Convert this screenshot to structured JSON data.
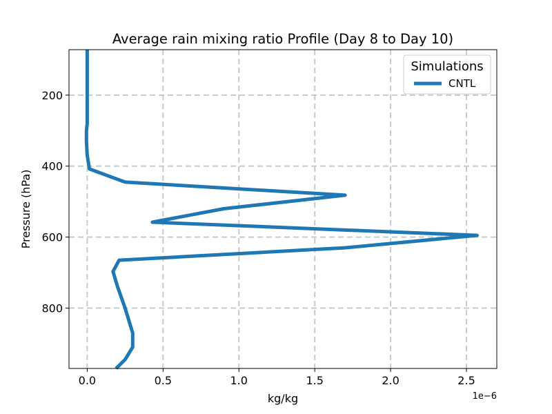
{
  "chart_data": {
    "type": "line",
    "title": "Average rain mixing ratio Profile (Day 8 to Day 10)",
    "xlabel": "kg/kg",
    "ylabel": "Pressure (hPa)",
    "x_offset_label": "1e−6",
    "xlim": [
      -0.12,
      2.7
    ],
    "ylim": [
      970,
      72
    ],
    "y_inverted": true,
    "grid": true,
    "x_ticks": [
      0.0,
      0.5,
      1.0,
      1.5,
      2.0,
      2.5
    ],
    "x_tick_labels": [
      "0.0",
      "0.5",
      "1.0",
      "1.5",
      "2.0",
      "2.5"
    ],
    "y_ticks": [
      200,
      400,
      600,
      800
    ],
    "y_tick_labels": [
      "200",
      "400",
      "600",
      "800"
    ],
    "legend": {
      "title": "Simulations",
      "position": "top-right"
    },
    "series": [
      {
        "name": "CNTL",
        "color": "#1f77b4",
        "points": [
          {
            "x": 0.0,
            "y": 72
          },
          {
            "x": 0.0,
            "y": 150
          },
          {
            "x": 0.0,
            "y": 200
          },
          {
            "x": 0.0,
            "y": 250
          },
          {
            "x": 0.0,
            "y": 280
          },
          {
            "x": -0.005,
            "y": 300
          },
          {
            "x": -0.005,
            "y": 330
          },
          {
            "x": 0.0,
            "y": 370
          },
          {
            "x": 0.015,
            "y": 408
          },
          {
            "x": 0.25,
            "y": 445
          },
          {
            "x": 1.7,
            "y": 482
          },
          {
            "x": 0.9,
            "y": 520
          },
          {
            "x": 0.43,
            "y": 558
          },
          {
            "x": 2.57,
            "y": 595
          },
          {
            "x": 1.7,
            "y": 630
          },
          {
            "x": 0.21,
            "y": 665
          },
          {
            "x": 0.17,
            "y": 697
          },
          {
            "x": 0.2,
            "y": 740
          },
          {
            "x": 0.25,
            "y": 800
          },
          {
            "x": 0.3,
            "y": 870
          },
          {
            "x": 0.3,
            "y": 910
          },
          {
            "x": 0.25,
            "y": 945
          },
          {
            "x": 0.19,
            "y": 970
          }
        ]
      }
    ]
  }
}
